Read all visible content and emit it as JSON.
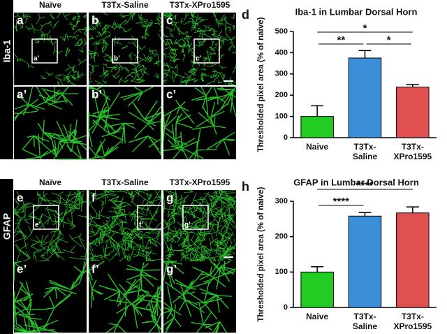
{
  "figure": {
    "rows": [
      {
        "marker": "Iba-1",
        "headers": [
          "Naïve",
          "T3Tx-Saline",
          "T3Tx-XPro1595"
        ],
        "panels": [
          "a",
          "b",
          "c"
        ],
        "zoom_panels": [
          "a’",
          "b’",
          "c’"
        ],
        "box_labels": [
          "a’",
          "b’",
          "c’"
        ]
      },
      {
        "marker": "GFAP",
        "headers": [
          "Naïve",
          "T3Tx-Saline",
          "T3Tx-XPro1595"
        ],
        "panels": [
          "e",
          "f",
          "g"
        ],
        "zoom_panels": [
          "e’",
          "f’",
          "g’"
        ],
        "box_labels": [
          "e’",
          "f’",
          "g’"
        ]
      }
    ]
  },
  "chart_data": [
    {
      "type": "bar",
      "panel_label": "d",
      "title": "Iba-1 in Lumbar Dorsal Horn",
      "y_label": "Thresholded pixel area (% of naive)",
      "categories": [
        "Naive",
        "T3Tx-Saline",
        "T3Tx-XPro1595"
      ],
      "values": [
        100,
        375,
        238
      ],
      "errors": [
        50,
        35,
        12
      ],
      "colors": [
        "#22cc22",
        "#3a8fd8",
        "#e05050"
      ],
      "ylim": [
        0,
        500
      ],
      "yticks": [
        0,
        100,
        200,
        300,
        400,
        500
      ],
      "significance": [
        {
          "from": 0,
          "to": 1,
          "label": "**"
        },
        {
          "from": 1,
          "to": 2,
          "label": "*"
        },
        {
          "from": 0,
          "to": 2,
          "label": "*"
        }
      ]
    },
    {
      "type": "bar",
      "panel_label": "h",
      "title": "GFAP in Lumbar Dorsal Horn",
      "y_label": "Thresholded pixel area (% of naive)",
      "categories": [
        "Naive",
        "T3Tx-Saline",
        "T3Tx-XPro1595"
      ],
      "values": [
        100,
        258,
        267
      ],
      "errors": [
        15,
        10,
        17
      ],
      "colors": [
        "#22cc22",
        "#3a8fd8",
        "#e05050"
      ],
      "ylim": [
        0,
        300
      ],
      "yticks": [
        0,
        100,
        200,
        300
      ],
      "significance": [
        {
          "from": 0,
          "to": 1,
          "label": "****"
        },
        {
          "from": 0,
          "to": 2,
          "label": "****"
        }
      ]
    }
  ]
}
